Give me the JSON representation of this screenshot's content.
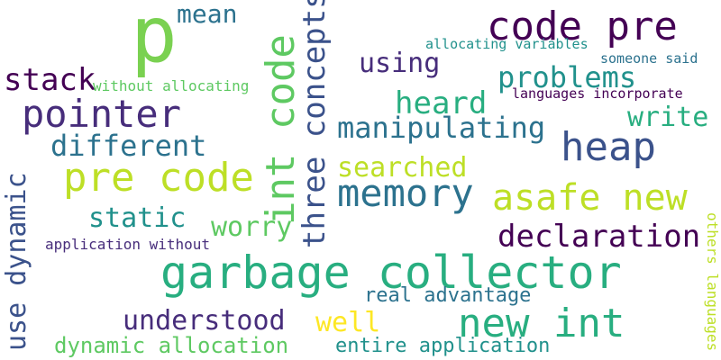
{
  "words": [
    {
      "text": "p",
      "color": "#7ad151"
    },
    {
      "text": "mean",
      "color": "#2c728e"
    },
    {
      "text": "code pre",
      "color": "#440154"
    },
    {
      "text": "allocating variables",
      "color": "#21918c"
    },
    {
      "text": "someone said",
      "color": "#2c728e"
    },
    {
      "text": "using",
      "color": "#472d7b"
    },
    {
      "text": "problems",
      "color": "#21918c"
    },
    {
      "text": "languages incorporate",
      "color": "#440154"
    },
    {
      "text": "stack",
      "color": "#440154"
    },
    {
      "text": "without allocating",
      "color": "#5ec962"
    },
    {
      "text": "pointer",
      "color": "#472d7b"
    },
    {
      "text": "heard",
      "color": "#28ae80"
    },
    {
      "text": "write",
      "color": "#28ae80"
    },
    {
      "text": "manipulating",
      "color": "#2c728e"
    },
    {
      "text": "different",
      "color": "#2c728e"
    },
    {
      "text": "heap",
      "color": "#3b528b"
    },
    {
      "text": "pre code",
      "color": "#bddf26"
    },
    {
      "text": "searched",
      "color": "#bddf26"
    },
    {
      "text": "memory",
      "color": "#2c728e"
    },
    {
      "text": "asafe new",
      "color": "#bddf26"
    },
    {
      "text": "static",
      "color": "#21918c"
    },
    {
      "text": "worry",
      "color": "#5ec962"
    },
    {
      "text": "declaration",
      "color": "#440154"
    },
    {
      "text": "application without",
      "color": "#472d7b"
    },
    {
      "text": "garbage collector",
      "color": "#28ae80"
    },
    {
      "text": "real advantage",
      "color": "#2c728e"
    },
    {
      "text": "understood",
      "color": "#472d7b"
    },
    {
      "text": "well",
      "color": "#fde725"
    },
    {
      "text": "new int",
      "color": "#28ae80"
    },
    {
      "text": "dynamic allocation",
      "color": "#5ec962"
    },
    {
      "text": "entire application",
      "color": "#21918c"
    },
    {
      "text": "int code",
      "color": "#5ec962"
    },
    {
      "text": "three concepts",
      "color": "#3b528b"
    },
    {
      "text": "use dynamic",
      "color": "#3b528b"
    },
    {
      "text": "others languages",
      "color": "#bddf26"
    }
  ]
}
